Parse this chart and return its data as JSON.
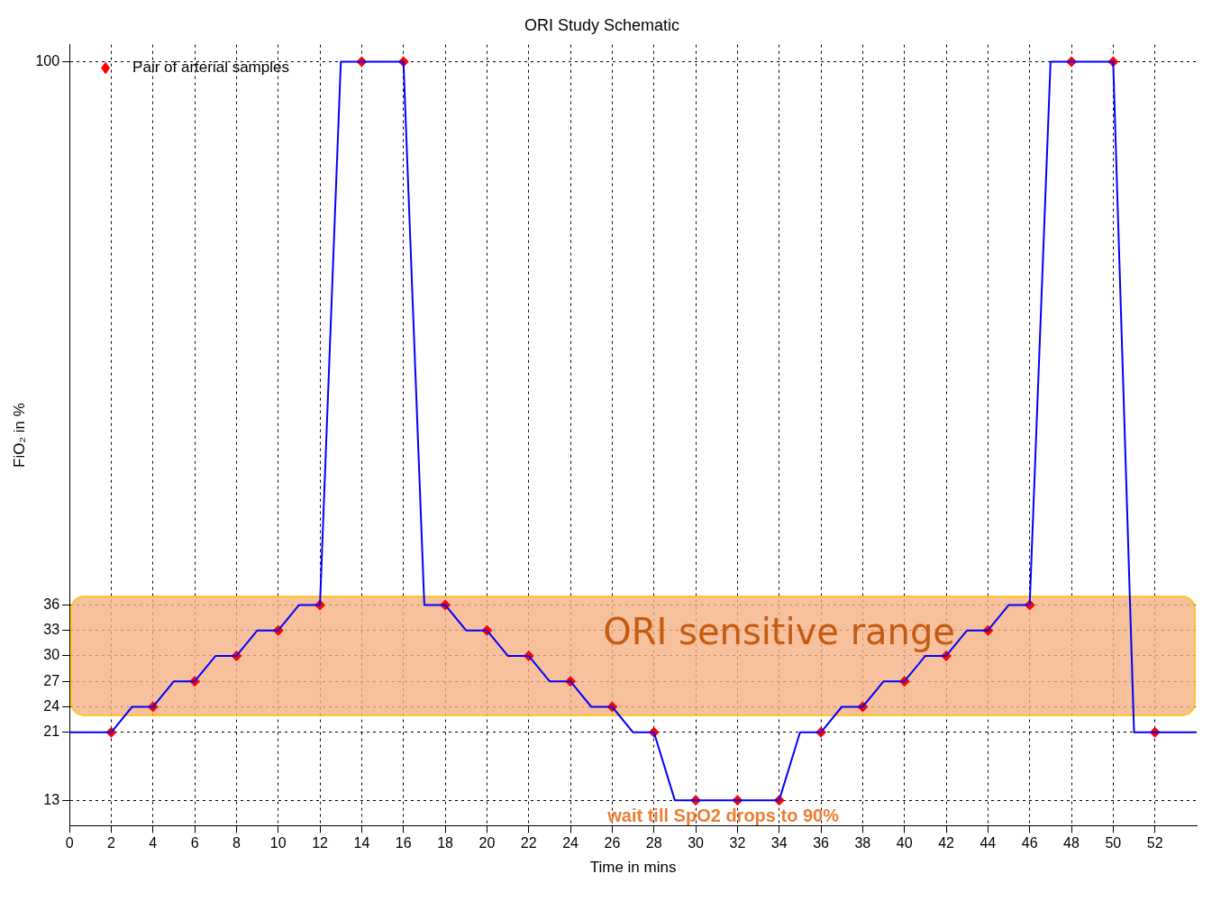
{
  "chart_data": {
    "type": "line",
    "title": "ORI Study Schematic",
    "xlabel": "Time in mins",
    "ylabel": "FiO₂ in %",
    "xlim": [
      0,
      54
    ],
    "xticks": [
      0,
      2,
      4,
      6,
      8,
      10,
      12,
      14,
      16,
      18,
      20,
      22,
      24,
      26,
      28,
      30,
      32,
      34,
      36,
      38,
      40,
      42,
      44,
      46,
      48,
      50,
      52
    ],
    "ylim": [
      10,
      102
    ],
    "yticks": [
      13,
      21,
      24,
      27,
      30,
      33,
      36,
      100
    ],
    "grid": true,
    "legend": "top left",
    "series": [
      {
        "color": "#0000ff",
        "x": [
          0,
          2,
          3,
          4,
          5,
          6,
          7,
          8,
          9,
          10,
          11,
          12,
          13,
          16,
          17,
          18,
          19,
          20,
          21,
          22,
          23,
          24,
          25,
          26,
          27,
          28,
          29,
          34,
          35,
          36,
          37,
          38,
          39,
          40,
          41,
          42,
          43,
          44,
          45,
          46,
          47,
          50,
          51,
          52,
          54
        ],
        "values": [
          21,
          21,
          24,
          24,
          27,
          27,
          30,
          30,
          33,
          33,
          36,
          36,
          100,
          100,
          36,
          36,
          33,
          33,
          30,
          30,
          27,
          27,
          24,
          24,
          21,
          21,
          13,
          13,
          21,
          21,
          24,
          24,
          27,
          27,
          30,
          30,
          33,
          33,
          36,
          36,
          100,
          100,
          21,
          21,
          21
        ]
      },
      {
        "type": "scatter",
        "name": "Pair of arterial samples",
        "color": "#ff0000",
        "marker": "diamond",
        "x": [
          2,
          4,
          6,
          8,
          10,
          12,
          14,
          16,
          18,
          20,
          22,
          24,
          26,
          28,
          30,
          32,
          34,
          36,
          38,
          40,
          42,
          44,
          46,
          48,
          50,
          52
        ],
        "values": [
          21,
          24,
          27,
          30,
          33,
          36,
          100,
          100,
          36,
          33,
          30,
          27,
          24,
          21,
          13,
          13,
          13,
          21,
          24,
          27,
          30,
          33,
          36,
          100,
          100,
          21
        ]
      }
    ],
    "bands": [
      {
        "axis": "y",
        "from": 23,
        "to": 37,
        "label": "ORI sensitive range",
        "color": "#f4b183"
      }
    ],
    "annotations": [
      "wait till SpO2 drops to 90%"
    ]
  }
}
